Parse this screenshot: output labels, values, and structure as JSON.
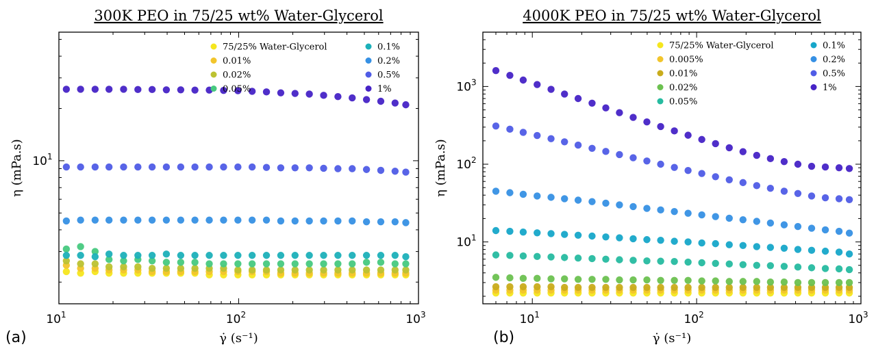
{
  "chart_data": [
    {
      "type": "scatter",
      "panel_label": "(a)",
      "title": "300K PEO in 75/25 wt% Water-Glycerol",
      "xlabel": "γ̇ (s⁻¹)",
      "ylabel": "η (mPa.s)",
      "xscale": "log",
      "yscale": "log",
      "xlim": [
        10,
        1000
      ],
      "ylim": [
        1.5,
        55
      ],
      "x_ticks": [
        {
          "value": 10,
          "base": "10",
          "exp": "1"
        },
        {
          "value": 100,
          "base": "10",
          "exp": "2"
        },
        {
          "value": 1000,
          "base": "10",
          "exp": "3"
        }
      ],
      "y_ticks": [
        {
          "value": 10,
          "base": "10",
          "exp": "1"
        }
      ],
      "legend_location": "upper right, two columns",
      "x": [
        11,
        13.2,
        15.9,
        19,
        22.9,
        27.5,
        33,
        39.6,
        47.6,
        57.1,
        68.6,
        82.4,
        99,
        118.8,
        142.7,
        171.4,
        205.8,
        247.1,
        296.8,
        356.4,
        427.9,
        513.9,
        617.1,
        741,
        850
      ],
      "series": [
        {
          "name": "75/25% Water-Glycerol",
          "color": "#f5e61e",
          "values": [
            2.3,
            2.25,
            2.3,
            2.25,
            2.25,
            2.25,
            2.25,
            2.25,
            2.25,
            2.25,
            2.2,
            2.2,
            2.2,
            2.2,
            2.2,
            2.2,
            2.2,
            2.2,
            2.2,
            2.2,
            2.2,
            2.2,
            2.2,
            2.2,
            2.2
          ]
        },
        {
          "name": "0.01%",
          "color": "#f2c52c",
          "values": [
            2.5,
            2.4,
            2.4,
            2.35,
            2.35,
            2.35,
            2.3,
            2.3,
            2.3,
            2.3,
            2.3,
            2.3,
            2.3,
            2.3,
            2.3,
            2.25,
            2.25,
            2.25,
            2.25,
            2.25,
            2.25,
            2.25,
            2.25,
            2.25,
            2.25
          ]
        },
        {
          "name": "0.02%",
          "color": "#bcc232",
          "values": [
            2.65,
            2.55,
            2.55,
            2.45,
            2.45,
            2.45,
            2.4,
            2.4,
            2.4,
            2.4,
            2.4,
            2.4,
            2.35,
            2.35,
            2.35,
            2.35,
            2.35,
            2.35,
            2.35,
            2.35,
            2.35,
            2.35,
            2.35,
            2.35,
            2.35
          ]
        },
        {
          "name": "0.05%",
          "color": "#47c97f",
          "values": [
            3.1,
            3.2,
            3.0,
            2.7,
            2.65,
            2.7,
            2.65,
            2.6,
            2.6,
            2.6,
            2.55,
            2.55,
            2.55,
            2.55,
            2.55,
            2.55,
            2.55,
            2.55,
            2.55,
            2.55,
            2.55,
            2.6,
            2.6,
            2.55,
            2.55
          ]
        },
        {
          "name": "0.1%",
          "color": "#1cb0b9",
          "values": [
            2.85,
            2.85,
            2.8,
            2.9,
            2.85,
            2.85,
            2.85,
            2.9,
            2.85,
            2.85,
            2.85,
            2.85,
            2.85,
            2.85,
            2.85,
            2.85,
            2.85,
            2.85,
            2.85,
            2.85,
            2.85,
            2.85,
            2.85,
            2.85,
            2.8
          ]
        },
        {
          "name": "0.2%",
          "color": "#3690e4",
          "values": [
            4.5,
            4.55,
            4.55,
            4.55,
            4.55,
            4.55,
            4.55,
            4.55,
            4.55,
            4.55,
            4.55,
            4.55,
            4.55,
            4.55,
            4.55,
            4.5,
            4.5,
            4.5,
            4.5,
            4.5,
            4.5,
            4.45,
            4.45,
            4.45,
            4.4
          ]
        },
        {
          "name": "0.5%",
          "color": "#4f5ce6",
          "values": [
            9.2,
            9.2,
            9.2,
            9.2,
            9.2,
            9.2,
            9.2,
            9.2,
            9.2,
            9.2,
            9.2,
            9.2,
            9.2,
            9.2,
            9.15,
            9.1,
            9.1,
            9.1,
            9.05,
            9.0,
            9.0,
            8.9,
            8.8,
            8.7,
            8.6
          ]
        },
        {
          "name": "1%",
          "color": "#4623c6",
          "values": [
            25.8,
            25.8,
            25.8,
            25.8,
            25.8,
            25.7,
            25.7,
            25.6,
            25.6,
            25.5,
            25.5,
            25.4,
            25.3,
            25.1,
            24.9,
            24.6,
            24.4,
            24.2,
            23.8,
            23.4,
            23.0,
            22.5,
            22.0,
            21.5,
            21.0
          ]
        }
      ]
    },
    {
      "type": "scatter",
      "panel_label": "(b)",
      "title": "4000K PEO in 75/25 wt% Water-Glycerol",
      "xlabel": "γ̇ (s⁻¹)",
      "ylabel": "η (mPa.s)",
      "xscale": "log",
      "yscale": "log",
      "xlim": [
        5,
        1000
      ],
      "ylim": [
        1.6,
        5000
      ],
      "x_ticks": [
        {
          "value": 10,
          "base": "10",
          "exp": "1"
        },
        {
          "value": 100,
          "base": "10",
          "exp": "2"
        },
        {
          "value": 1000,
          "base": "10",
          "exp": "3"
        }
      ],
      "y_ticks": [
        {
          "value": 10,
          "base": "10",
          "exp": "1"
        },
        {
          "value": 100,
          "base": "10",
          "exp": "2"
        },
        {
          "value": 1000,
          "base": "10",
          "exp": "3"
        }
      ],
      "legend_location": "upper right, two columns",
      "x": [
        6,
        7.3,
        8.8,
        10.7,
        13,
        15.7,
        19,
        23.1,
        28,
        33.9,
        41.1,
        49.8,
        60.4,
        73.2,
        88.7,
        107.5,
        130.3,
        158,
        191.5,
        232.1,
        281.3,
        341,
        413.3,
        501,
        607.3,
        736.1,
        850
      ],
      "series": [
        {
          "name": "75/25% Water-Glycerol",
          "color": "#f5e61e",
          "values": [
            2.2,
            2.2,
            2.2,
            2.2,
            2.2,
            2.2,
            2.2,
            2.2,
            2.2,
            2.2,
            2.2,
            2.2,
            2.2,
            2.2,
            2.2,
            2.2,
            2.2,
            2.2,
            2.2,
            2.2,
            2.2,
            2.2,
            2.2,
            2.2,
            2.2,
            2.2,
            2.2
          ]
        },
        {
          "name": "0.005%",
          "color": "#f2c52c",
          "values": [
            2.4,
            2.4,
            2.4,
            2.4,
            2.4,
            2.4,
            2.4,
            2.4,
            2.4,
            2.4,
            2.4,
            2.4,
            2.4,
            2.4,
            2.4,
            2.4,
            2.4,
            2.4,
            2.4,
            2.4,
            2.4,
            2.4,
            2.4,
            2.4,
            2.4,
            2.4,
            2.4
          ]
        },
        {
          "name": "0.01%",
          "color": "#c9ac1c",
          "values": [
            2.65,
            2.65,
            2.65,
            2.65,
            2.65,
            2.6,
            2.6,
            2.6,
            2.6,
            2.6,
            2.6,
            2.6,
            2.6,
            2.6,
            2.6,
            2.6,
            2.6,
            2.6,
            2.6,
            2.6,
            2.6,
            2.6,
            2.6,
            2.6,
            2.6,
            2.6,
            2.6
          ]
        },
        {
          "name": "0.02%",
          "color": "#6cc150",
          "values": [
            3.5,
            3.45,
            3.4,
            3.4,
            3.35,
            3.35,
            3.3,
            3.3,
            3.3,
            3.25,
            3.25,
            3.25,
            3.2,
            3.2,
            3.2,
            3.15,
            3.15,
            3.1,
            3.1,
            3.1,
            3.05,
            3.05,
            3.0,
            3.0,
            3.0,
            3.0,
            3.0
          ]
        },
        {
          "name": "0.05%",
          "color": "#26bba0",
          "values": [
            6.8,
            6.7,
            6.6,
            6.5,
            6.4,
            6.3,
            6.2,
            6.1,
            6.0,
            5.9,
            5.8,
            5.7,
            5.65,
            5.6,
            5.5,
            5.4,
            5.3,
            5.2,
            5.1,
            5.0,
            4.95,
            4.85,
            4.75,
            4.65,
            4.55,
            4.5,
            4.4
          ]
        },
        {
          "name": "0.1%",
          "color": "#16a6c9",
          "values": [
            14.0,
            13.7,
            13.4,
            13.1,
            12.8,
            12.5,
            12.2,
            11.9,
            11.6,
            11.3,
            11.0,
            10.7,
            10.5,
            10.2,
            10.0,
            9.7,
            9.5,
            9.2,
            9.0,
            8.7,
            8.5,
            8.3,
            8.0,
            7.8,
            7.6,
            7.4,
            7.0
          ]
        },
        {
          "name": "0.2%",
          "color": "#3690e4",
          "values": [
            45,
            43,
            41,
            39,
            37.5,
            36,
            34.5,
            33,
            31.5,
            30,
            28.5,
            27,
            25.8,
            24.6,
            23.4,
            22.3,
            21.2,
            20.2,
            19.3,
            18.4,
            17.5,
            16.6,
            15.8,
            15.0,
            14.3,
            13.7,
            13.0
          ]
        },
        {
          "name": "0.5%",
          "color": "#4f5ce6",
          "values": [
            310,
            282,
            257,
            234,
            213,
            194,
            176,
            160,
            146,
            133,
            121,
            110,
            100,
            91,
            83,
            76,
            69,
            63,
            58,
            53,
            49,
            45,
            42,
            39,
            37,
            36,
            35
          ]
        },
        {
          "name": "1%",
          "color": "#4623c6",
          "values": [
            1600,
            1390,
            1210,
            1060,
            920,
            800,
            700,
            610,
            530,
            460,
            400,
            350,
            305,
            268,
            236,
            208,
            184,
            163,
            145,
            130,
            118,
            108,
            100,
            94,
            92,
            90,
            88
          ]
        }
      ]
    }
  ]
}
